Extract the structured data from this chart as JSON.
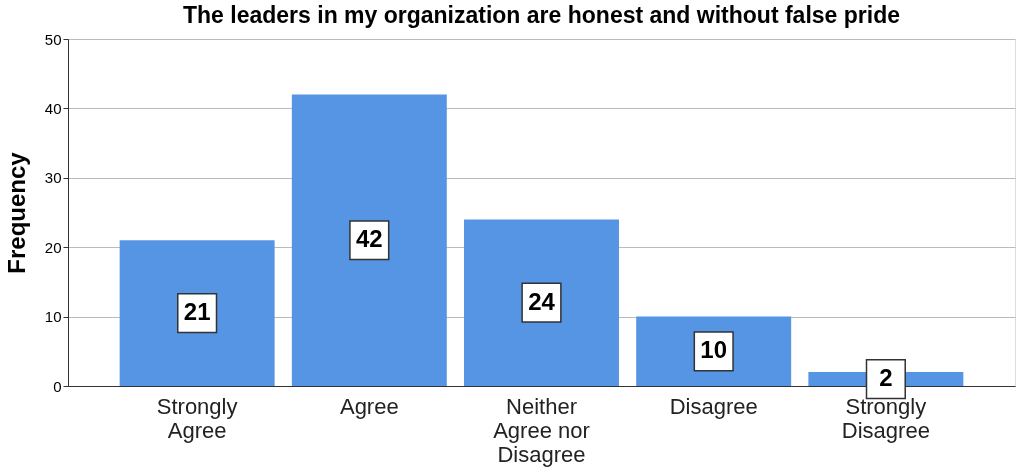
{
  "chart_data": {
    "type": "bar",
    "title": "The leaders in my organization are honest and without false pride",
    "ylabel": "Frequency",
    "categories": [
      "Strongly Agree",
      "Agree",
      "Neither Agree nor Disagree",
      "Disagree",
      "Strongly Disagree"
    ],
    "values": [
      21,
      42,
      24,
      10,
      2
    ],
    "color": "#5694e4",
    "ylim": [
      0,
      50
    ],
    "yticks": [
      0,
      10,
      20,
      30,
      40,
      50
    ],
    "grid": "y",
    "data_labels": true
  }
}
